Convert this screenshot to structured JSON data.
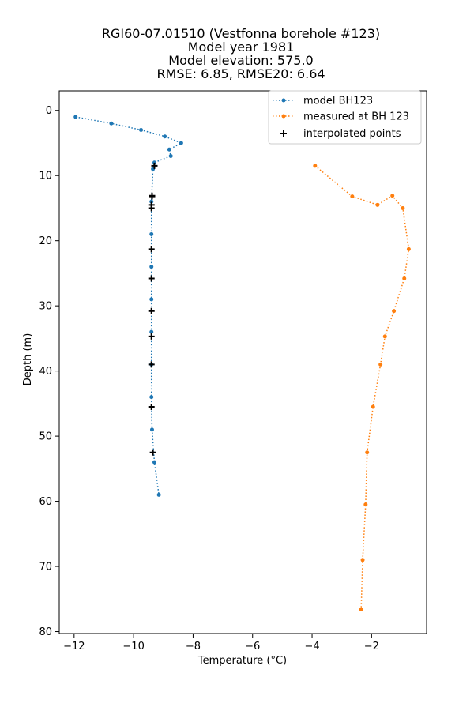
{
  "chart_data": {
    "type": "line",
    "title_lines": [
      "RGI60-07.01510 (Vestfonna borehole #123)",
      "Model year 1981",
      "Model elevation: 575.0",
      "RMSE: 6.85, RMSE20: 6.64"
    ],
    "xlabel": "Temperature (°C)",
    "ylabel": "Depth (m)",
    "xlim": [
      -12.5,
      -0.15
    ],
    "ylim": [
      80.3,
      -3.0
    ],
    "y_inverted": true,
    "x_ticks": [
      -12,
      -10,
      -8,
      -6,
      -4,
      -2
    ],
    "x_tick_labels": [
      "−12",
      "−10",
      "−8",
      "−6",
      "−4",
      "−2"
    ],
    "y_ticks": [
      0,
      10,
      20,
      30,
      40,
      50,
      60,
      70,
      80
    ],
    "y_tick_labels": [
      "0",
      "10",
      "20",
      "30",
      "40",
      "50",
      "60",
      "70",
      "80"
    ],
    "grid": false,
    "legend_position": "top-right",
    "series": [
      {
        "name": "model BH123",
        "color": "#1f77b4",
        "style": "dotted-line-with-dots",
        "points": [
          [
            -11.95,
            1.0
          ],
          [
            -10.75,
            2.0
          ],
          [
            -9.75,
            3.0
          ],
          [
            -8.95,
            4.0
          ],
          [
            -8.4,
            5.0
          ],
          [
            -8.8,
            6.0
          ],
          [
            -8.75,
            7.0
          ],
          [
            -9.3,
            8.0
          ],
          [
            -9.35,
            9.0
          ],
          [
            -9.4,
            14.0
          ],
          [
            -9.4,
            19.0
          ],
          [
            -9.4,
            24.0
          ],
          [
            -9.4,
            29.0
          ],
          [
            -9.4,
            34.0
          ],
          [
            -9.4,
            39.0
          ],
          [
            -9.4,
            44.0
          ],
          [
            -9.38,
            49.0
          ],
          [
            -9.3,
            54.0
          ],
          [
            -9.15,
            59.0
          ]
        ]
      },
      {
        "name": "measured at BH 123",
        "color": "#ff7f0e",
        "style": "dotted-line-with-dots",
        "points": [
          [
            -3.9,
            8.5
          ],
          [
            -2.65,
            13.2
          ],
          [
            -1.8,
            14.5
          ],
          [
            -1.3,
            13.1
          ],
          [
            -0.95,
            15.0
          ],
          [
            -0.75,
            21.3
          ],
          [
            -0.9,
            25.8
          ],
          [
            -1.25,
            30.8
          ],
          [
            -1.55,
            34.7
          ],
          [
            -1.7,
            39.0
          ],
          [
            -1.95,
            45.5
          ],
          [
            -2.15,
            52.5
          ],
          [
            -2.2,
            60.5
          ],
          [
            -2.3,
            69.0
          ],
          [
            -2.35,
            76.6
          ]
        ]
      },
      {
        "name": "interpolated points",
        "color": "#000000",
        "style": "plus-markers",
        "points": [
          [
            -9.3,
            8.5
          ],
          [
            -9.38,
            13.2
          ],
          [
            -9.4,
            14.5
          ],
          [
            -9.38,
            13.1
          ],
          [
            -9.4,
            15.0
          ],
          [
            -9.4,
            21.3
          ],
          [
            -9.4,
            25.8
          ],
          [
            -9.4,
            30.8
          ],
          [
            -9.4,
            34.7
          ],
          [
            -9.4,
            39.0
          ],
          [
            -9.4,
            45.5
          ],
          [
            -9.35,
            52.5
          ]
        ]
      }
    ]
  }
}
